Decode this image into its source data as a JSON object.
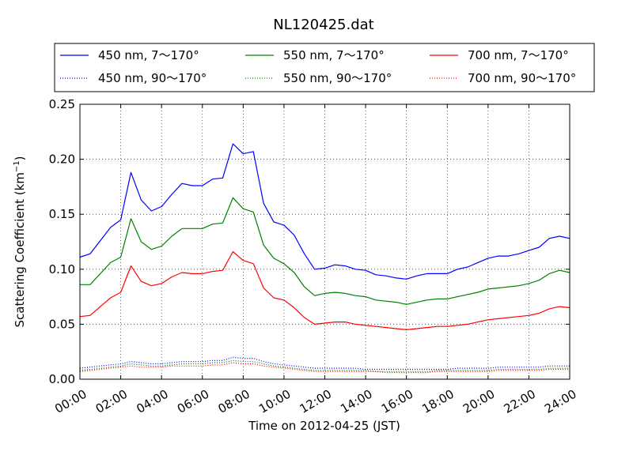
{
  "chart_data": {
    "type": "line",
    "title": "NL120425.dat",
    "xlabel": "Time on 2012-04-25 (JST)",
    "ylabel": "Scattering Coefficient (km",
    "ylabel_sup": "−1",
    "ylabel_close": ")",
    "xlim": [
      0,
      24
    ],
    "ylim": [
      0,
      0.25
    ],
    "grid": true,
    "legend_position": "top",
    "x_ticks": [
      0,
      2,
      4,
      6,
      8,
      10,
      12,
      14,
      16,
      18,
      20,
      22,
      24
    ],
    "x_tick_labels": [
      "00:00",
      "02:00",
      "04:00",
      "06:00",
      "08:00",
      "10:00",
      "12:00",
      "14:00",
      "16:00",
      "18:00",
      "20:00",
      "22:00",
      "24:00"
    ],
    "y_ticks": [
      0,
      0.05,
      0.1,
      0.15,
      0.2,
      0.25
    ],
    "y_tick_labels": [
      "0.00",
      "0.05",
      "0.10",
      "0.15",
      "0.20",
      "0.25"
    ],
    "x": [
      0,
      0.5,
      1,
      1.5,
      2,
      2.5,
      3,
      3.5,
      4,
      4.5,
      5,
      5.5,
      6,
      6.5,
      7,
      7.5,
      8,
      8.5,
      9,
      9.5,
      10,
      10.5,
      11,
      11.5,
      12,
      12.5,
      13,
      13.5,
      14,
      14.5,
      15,
      15.5,
      16,
      16.5,
      17,
      17.5,
      18,
      18.5,
      19,
      19.5,
      20,
      20.5,
      21,
      21.5,
      22,
      22.5,
      23,
      23.5,
      24
    ],
    "series": [
      {
        "name": "450 nm, 7～170°",
        "color": "#0000ff",
        "style": "solid",
        "values": [
          0.111,
          0.114,
          0.126,
          0.138,
          0.145,
          0.188,
          0.163,
          0.153,
          0.157,
          0.168,
          0.178,
          0.176,
          0.176,
          0.182,
          0.183,
          0.214,
          0.205,
          0.207,
          0.16,
          0.143,
          0.14,
          0.131,
          0.114,
          0.1,
          0.101,
          0.104,
          0.103,
          0.1,
          0.099,
          0.095,
          0.094,
          0.092,
          0.091,
          0.094,
          0.096,
          0.096,
          0.096,
          0.1,
          0.102,
          0.106,
          0.11,
          0.112,
          0.112,
          0.114,
          0.117,
          0.12,
          0.128,
          0.13,
          0.128
        ]
      },
      {
        "name": "450 nm, 90～170°",
        "color": "#0000ff",
        "style": "dotted",
        "values": [
          0.01,
          0.011,
          0.012,
          0.013,
          0.014,
          0.016,
          0.015,
          0.014,
          0.014,
          0.015,
          0.016,
          0.016,
          0.016,
          0.017,
          0.017,
          0.02,
          0.019,
          0.019,
          0.016,
          0.014,
          0.013,
          0.012,
          0.011,
          0.01,
          0.01,
          0.01,
          0.01,
          0.01,
          0.009,
          0.009,
          0.009,
          0.009,
          0.009,
          0.009,
          0.009,
          0.009,
          0.009,
          0.01,
          0.01,
          0.01,
          0.01,
          0.011,
          0.011,
          0.011,
          0.011,
          0.011,
          0.012,
          0.012,
          0.012
        ]
      },
      {
        "name": "550 nm, 7～170°",
        "color": "#008000",
        "style": "solid",
        "values": [
          0.086,
          0.086,
          0.096,
          0.106,
          0.111,
          0.146,
          0.125,
          0.118,
          0.121,
          0.13,
          0.137,
          0.137,
          0.137,
          0.141,
          0.142,
          0.165,
          0.155,
          0.152,
          0.122,
          0.11,
          0.105,
          0.097,
          0.084,
          0.076,
          0.078,
          0.079,
          0.078,
          0.076,
          0.075,
          0.072,
          0.071,
          0.07,
          0.068,
          0.07,
          0.072,
          0.073,
          0.073,
          0.075,
          0.077,
          0.079,
          0.082,
          0.083,
          0.084,
          0.085,
          0.087,
          0.09,
          0.096,
          0.099,
          0.097
        ]
      },
      {
        "name": "550 nm, 90～170°",
        "color": "#008000",
        "style": "dotted",
        "values": [
          0.008,
          0.009,
          0.01,
          0.011,
          0.012,
          0.014,
          0.013,
          0.012,
          0.012,
          0.013,
          0.014,
          0.014,
          0.014,
          0.015,
          0.015,
          0.017,
          0.016,
          0.016,
          0.014,
          0.012,
          0.011,
          0.01,
          0.009,
          0.008,
          0.008,
          0.008,
          0.008,
          0.008,
          0.008,
          0.007,
          0.007,
          0.007,
          0.007,
          0.007,
          0.007,
          0.008,
          0.008,
          0.008,
          0.008,
          0.008,
          0.008,
          0.009,
          0.009,
          0.009,
          0.009,
          0.009,
          0.01,
          0.01,
          0.01
        ]
      },
      {
        "name": "700 nm, 7～170°",
        "color": "#ff0000",
        "style": "solid",
        "values": [
          0.057,
          0.058,
          0.066,
          0.074,
          0.079,
          0.103,
          0.089,
          0.085,
          0.087,
          0.093,
          0.097,
          0.096,
          0.096,
          0.098,
          0.099,
          0.116,
          0.108,
          0.105,
          0.083,
          0.074,
          0.072,
          0.065,
          0.056,
          0.05,
          0.051,
          0.052,
          0.052,
          0.05,
          0.049,
          0.048,
          0.047,
          0.046,
          0.045,
          0.046,
          0.047,
          0.048,
          0.048,
          0.049,
          0.05,
          0.052,
          0.054,
          0.055,
          0.056,
          0.057,
          0.058,
          0.06,
          0.064,
          0.066,
          0.065
        ]
      },
      {
        "name": "700 nm, 90～170°",
        "color": "#ff0000",
        "style": "dotted",
        "values": [
          0.007,
          0.008,
          0.009,
          0.01,
          0.011,
          0.012,
          0.011,
          0.011,
          0.011,
          0.012,
          0.012,
          0.012,
          0.012,
          0.013,
          0.013,
          0.015,
          0.014,
          0.014,
          0.012,
          0.011,
          0.01,
          0.009,
          0.008,
          0.007,
          0.007,
          0.007,
          0.007,
          0.007,
          0.007,
          0.007,
          0.006,
          0.006,
          0.006,
          0.006,
          0.006,
          0.007,
          0.007,
          0.007,
          0.007,
          0.007,
          0.007,
          0.008,
          0.008,
          0.008,
          0.008,
          0.008,
          0.009,
          0.009,
          0.009
        ]
      }
    ]
  }
}
